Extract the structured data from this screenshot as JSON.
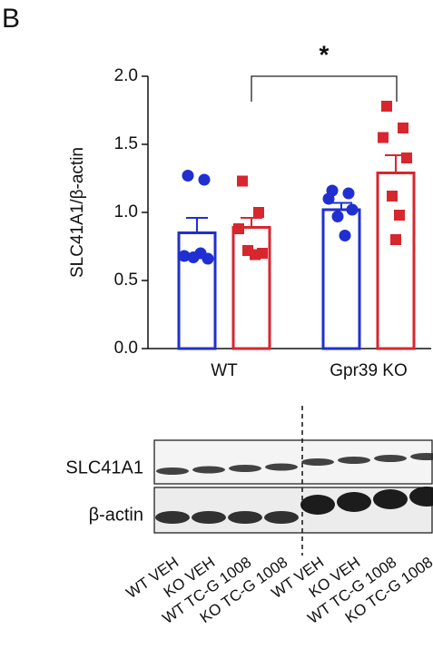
{
  "panel_label": "B",
  "chart_data": {
    "type": "bar",
    "ylabel": "SLC41A1/β-actin",
    "categories": [
      "WT",
      "Gpr39 KO"
    ],
    "ylim": [
      0,
      2.0
    ],
    "yticks": [
      {
        "value": 0,
        "label": "0.0"
      },
      {
        "value": 0.5,
        "label": "0.5"
      },
      {
        "value": 1.0,
        "label": "1.0"
      },
      {
        "value": 1.5,
        "label": "1.5"
      },
      {
        "value": 2.0,
        "label": "2.0"
      }
    ],
    "series": [
      {
        "color": "#1f2fd1",
        "marker": "circle",
        "values": [
          0.85,
          1.02
        ],
        "errors": [
          0.11,
          0.05
        ],
        "points": [
          [
            1.27,
            1.24,
            0.68,
            0.66,
            0.67,
            0.7
          ],
          [
            1.16,
            1.14,
            1.1,
            1.02,
            0.97,
            0.83
          ]
        ]
      },
      {
        "color": "#d8262e",
        "marker": "square",
        "values": [
          0.89,
          1.29
        ],
        "errors": [
          0.07,
          0.13
        ],
        "points": [
          [
            1.23,
            1.0,
            0.88,
            0.7,
            0.72,
            0.69
          ],
          [
            1.78,
            1.62,
            1.55,
            1.4,
            1.12,
            0.98,
            0.8
          ]
        ]
      }
    ],
    "annotation": "*"
  },
  "blot": {
    "rows": [
      "SLC41A1",
      "β-actin"
    ],
    "lanes": [
      "WT VEH",
      "KO VEH",
      "WT TC-G 1008",
      "KO TC-G 1008",
      "WT VEH",
      "KO VEH",
      "WT TC-G 1008",
      "KO TC-G 1008"
    ]
  }
}
